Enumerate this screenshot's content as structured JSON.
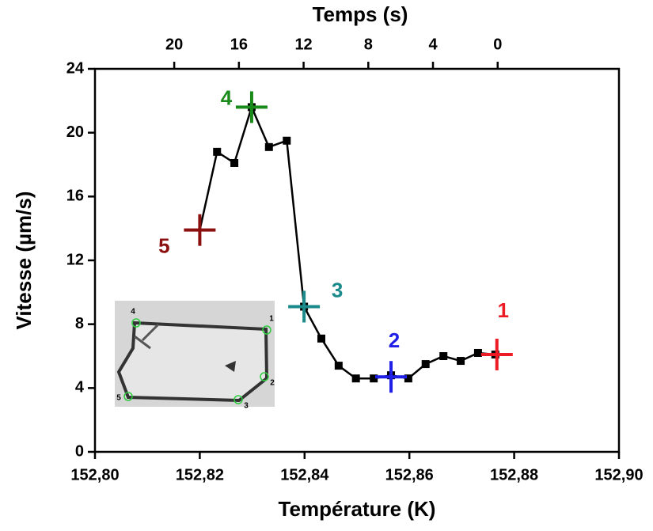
{
  "chart_data": {
    "type": "line",
    "x_label": "Température (K)",
    "y_label": "Vitesse (µm/s)",
    "x2_label": "Temps (s)",
    "xlim": [
      152.8,
      152.9
    ],
    "xticks": [
      {
        "value": 152.8,
        "label": "152,80"
      },
      {
        "value": 152.82,
        "label": "152,82"
      },
      {
        "value": 152.84,
        "label": "152,84"
      },
      {
        "value": 152.86,
        "label": "152,86"
      },
      {
        "value": 152.88,
        "label": "152,88"
      },
      {
        "value": 152.9,
        "label": "152,90"
      }
    ],
    "ylim": [
      0,
      24
    ],
    "yticks": [
      0,
      4,
      8,
      12,
      16,
      20,
      24
    ],
    "x2lim": [
      24.9,
      -7.5
    ],
    "x2ticks": [
      20,
      16,
      12,
      8,
      4,
      0
    ],
    "series": [
      {
        "color": "#000000",
        "x": [
          152.82,
          152.8233,
          152.8266,
          152.8299,
          152.8332,
          152.8366,
          152.8399,
          152.8432,
          152.8465,
          152.8498,
          152.8532,
          152.8565,
          152.8598,
          152.8631,
          152.8665,
          152.8698,
          152.8731,
          152.8764
        ],
        "values": [
          13.9,
          18.8,
          18.1,
          21.6,
          19.1,
          19.5,
          9.1,
          7.1,
          5.4,
          4.6,
          4.6,
          4.8,
          4.6,
          5.5,
          6.0,
          5.7,
          6.2,
          6.1
        ]
      }
    ],
    "annotations": [
      {
        "label": "1",
        "x": 152.8767,
        "y": 6.1,
        "color": "#ed1c24"
      },
      {
        "label": "2",
        "x": 152.8565,
        "y": 4.7,
        "color": "#1f1fe8"
      },
      {
        "label": "3",
        "x": 152.8399,
        "y": 9.1,
        "color": "#1a8a8a"
      },
      {
        "label": "4",
        "x": 152.8299,
        "y": 21.6,
        "color": "#1a8a1a"
      },
      {
        "label": "5",
        "x": 152.82,
        "y": 13.9,
        "color": "#8b0f0f"
      }
    ],
    "inset_labels": [
      "1",
      "2",
      "3",
      "4",
      "5"
    ]
  }
}
